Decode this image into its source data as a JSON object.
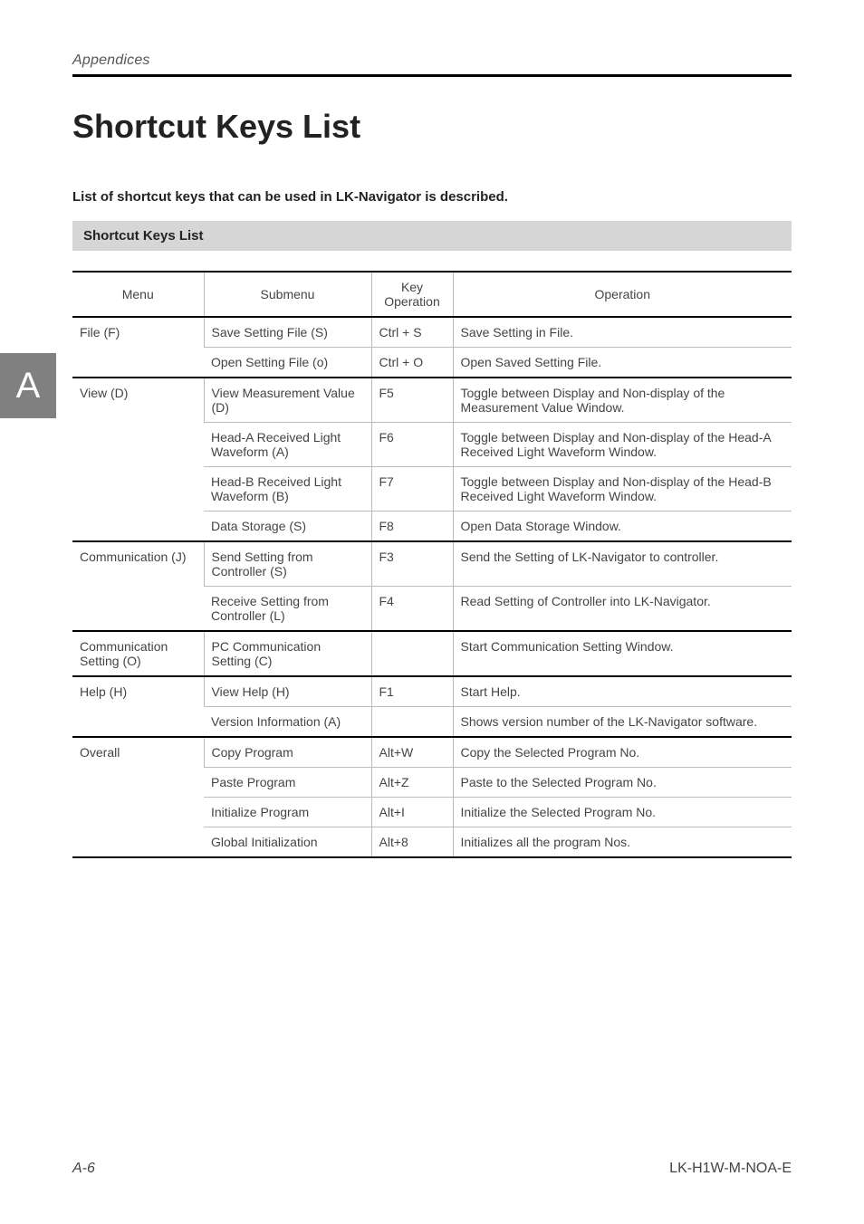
{
  "running_header": "Appendices",
  "section_tab": "A",
  "title": "Shortcut Keys List",
  "intro": "List of shortcut keys that can be used in LK-Navigator is described.",
  "sub_header": "Shortcut Keys List",
  "columns": {
    "menu": "Menu",
    "submenu": "Submenu",
    "key": "Key Operation",
    "op": "Operation"
  },
  "groups": [
    {
      "menu": "File (F)",
      "rows": [
        {
          "submenu": "Save Setting File (S)",
          "key": "Ctrl + S",
          "op": "Save Setting in File."
        },
        {
          "submenu": "Open Setting File (o)",
          "key": "Ctrl + O",
          "op": "Open Saved Setting File."
        }
      ]
    },
    {
      "menu": "View (D)",
      "rows": [
        {
          "submenu": "View Measurement Value (D)",
          "key": "F5",
          "op": "Toggle between Display and Non-display of the Measurement Value Window."
        },
        {
          "submenu": "Head-A Received Light Waveform (A)",
          "key": "F6",
          "op": "Toggle between Display and Non-display of the Head-A Received Light Waveform Window."
        },
        {
          "submenu": "Head-B Received Light Waveform (B)",
          "key": "F7",
          "op": "Toggle between Display and Non-display of the Head-B Received Light Waveform Window."
        },
        {
          "submenu": "Data Storage (S)",
          "key": "F8",
          "op": "Open Data Storage Window."
        }
      ]
    },
    {
      "menu": "Communication (J)",
      "rows": [
        {
          "submenu": "Send Setting from Controller (S)",
          "key": "F3",
          "op": "Send the Setting of LK-Navigator to controller."
        },
        {
          "submenu": "Receive Setting from Controller (L)",
          "key": "F4",
          "op": "Read Setting of Controller into LK-Navigator."
        }
      ]
    },
    {
      "menu": "Communication Setting (O)",
      "rows": [
        {
          "submenu": "PC Communication Setting (C)",
          "key": "",
          "op": "Start Communication Setting Window."
        }
      ]
    },
    {
      "menu": "Help (H)",
      "rows": [
        {
          "submenu": "View Help (H)",
          "key": "F1",
          "op": "Start Help."
        },
        {
          "submenu": "Version Information (A)",
          "key": "",
          "op": "Shows version number of the LK-Navigator software."
        }
      ]
    },
    {
      "menu": "Overall",
      "rows": [
        {
          "submenu": "Copy Program",
          "key": "Alt+W",
          "op": "Copy the Selected Program No."
        },
        {
          "submenu": "Paste Program",
          "key": "Alt+Z",
          "op": "Paste to the Selected Program No."
        },
        {
          "submenu": "Initialize Program",
          "key": "Alt+I",
          "op": "Initialize the Selected Program No."
        },
        {
          "submenu": "Global Initialization",
          "key": "Alt+8",
          "op": "Initializes all the program Nos."
        }
      ]
    }
  ],
  "footer": {
    "page": "A-6",
    "doc": "LK-H1W-M-NOA-E"
  }
}
